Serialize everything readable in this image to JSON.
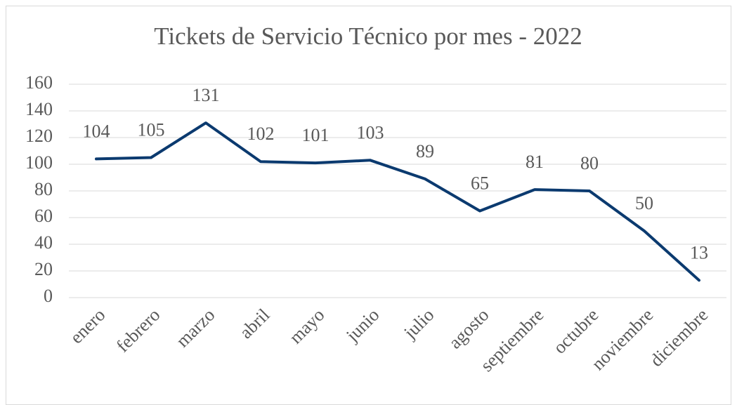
{
  "chart_data": {
    "type": "line",
    "title": "Tickets de Servicio Técnico por mes - 2022",
    "categories": [
      "enero",
      "febrero",
      "marzo",
      "abril",
      "mayo",
      "junio",
      "julio",
      "agosto",
      "septiembre",
      "octubre",
      "noviembre",
      "diciembre"
    ],
    "values": [
      104,
      105,
      131,
      102,
      101,
      103,
      89,
      65,
      81,
      80,
      50,
      13
    ],
    "color": "#0b3a6f",
    "ylim": [
      0,
      160
    ],
    "yticks": [
      0,
      20,
      40,
      60,
      80,
      100,
      120,
      140,
      160
    ],
    "grid": true
  }
}
